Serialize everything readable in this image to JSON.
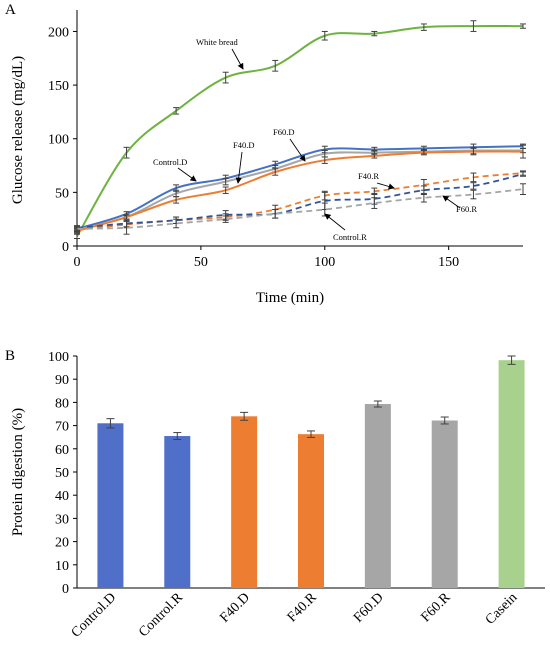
{
  "chart_data": [
    {
      "panel_label": "A",
      "type": "line",
      "xlabel": "Time (min)",
      "ylabel": "Glucose release (mg/dL)",
      "xlim": [
        0,
        180
      ],
      "ylim": [
        0,
        220
      ],
      "xticks": [
        0,
        50,
        100,
        150
      ],
      "yticks": [
        0,
        50,
        100,
        150,
        200
      ],
      "grid": false,
      "series": [
        {
          "name": "White bread",
          "color": "#6db33f",
          "dash": "solid",
          "x": [
            0,
            20,
            40,
            60,
            80,
            100,
            120,
            140,
            160,
            180
          ],
          "y": [
            9,
            87,
            126,
            157,
            168,
            196,
            198,
            204,
            205,
            205
          ],
          "err": [
            2,
            5,
            3,
            5,
            5,
            4,
            2,
            3,
            5,
            2
          ]
        },
        {
          "name": "Control.D",
          "color": "#4472c4",
          "dash": "solid",
          "x": [
            0,
            20,
            40,
            60,
            80,
            100,
            120,
            140,
            160,
            180
          ],
          "y": [
            16,
            30,
            54,
            63,
            76,
            90,
            90,
            91,
            92,
            93
          ],
          "err": [
            2,
            2,
            3,
            3,
            3,
            3,
            2,
            2,
            3,
            2
          ]
        },
        {
          "name": "F60.D",
          "color": "#a6a6a6",
          "dash": "solid",
          "x": [
            0,
            20,
            40,
            60,
            80,
            100,
            120,
            140,
            160,
            180
          ],
          "y": [
            15,
            27,
            49,
            60,
            72,
            86,
            87,
            88,
            89,
            89
          ],
          "err": [
            2,
            2,
            3,
            3,
            3,
            3,
            2,
            2,
            3,
            2
          ]
        },
        {
          "name": "F40.D",
          "color": "#ed7d31",
          "dash": "solid",
          "x": [
            0,
            20,
            40,
            60,
            80,
            100,
            120,
            140,
            160,
            180
          ],
          "y": [
            14,
            27,
            43,
            52,
            69,
            80,
            84,
            87,
            88,
            88
          ],
          "err": [
            2,
            2,
            3,
            3,
            3,
            3,
            2,
            2,
            3,
            6
          ]
        },
        {
          "name": "F40.R",
          "color": "#ed7d31",
          "dash": "dashed",
          "x": [
            0,
            20,
            40,
            60,
            80,
            100,
            120,
            140,
            160,
            180
          ],
          "y": [
            15,
            20,
            24,
            27,
            34,
            47,
            51,
            57,
            64,
            68
          ],
          "err": [
            2,
            3,
            3,
            3,
            4,
            4,
            3,
            5,
            4,
            2
          ]
        },
        {
          "name": "F60.R",
          "color": "#2e5597",
          "dash": "dashed",
          "x": [
            0,
            20,
            40,
            60,
            80,
            100,
            120,
            140,
            160,
            180
          ],
          "y": [
            17,
            21,
            24,
            29,
            30,
            42,
            44,
            52,
            56,
            67
          ],
          "err": [
            2,
            3,
            3,
            4,
            4,
            8,
            5,
            4,
            3,
            2
          ]
        },
        {
          "name": "Control.R",
          "color": "#a6a6a6",
          "dash": "dashed",
          "x": [
            0,
            20,
            40,
            60,
            80,
            100,
            120,
            140,
            160,
            180
          ],
          "y": [
            16,
            17,
            21,
            25,
            30,
            34,
            40,
            45,
            48,
            53
          ],
          "err": [
            2,
            6,
            4,
            3,
            4,
            6,
            5,
            4,
            4,
            5
          ]
        }
      ],
      "annotations": [
        {
          "text": "White bread",
          "target_series": "White bread"
        },
        {
          "text": "Control.D",
          "target_series": "Control.D"
        },
        {
          "text": "F40.D",
          "target_series": "F40.D"
        },
        {
          "text": "F60.D",
          "target_series": "F60.D"
        },
        {
          "text": "F40.R",
          "target_series": "F40.R"
        },
        {
          "text": "F60.R",
          "target_series": "F60.R"
        },
        {
          "text": "Control.R",
          "target_series": "Control.R"
        }
      ]
    },
    {
      "panel_label": "B",
      "type": "bar",
      "ylabel": "Protein digestion (%)",
      "ylim": [
        0,
        100
      ],
      "yticks": [
        0,
        10,
        20,
        30,
        40,
        50,
        60,
        70,
        80,
        90,
        100
      ],
      "grid": false,
      "categories": [
        "Control.D",
        "Control.R",
        "F40.D",
        "F40.R",
        "F60.D",
        "F60.R",
        "Casein"
      ],
      "values": [
        71,
        65.5,
        74,
        66.3,
        79.3,
        72.2,
        98.2
      ],
      "errors": [
        2.0,
        1.5,
        1.7,
        1.4,
        1.3,
        1.5,
        1.8
      ],
      "colors": [
        "#4f6fc8",
        "#4f6fc8",
        "#ed7d31",
        "#ed7d31",
        "#a6a6a6",
        "#a6a6a6",
        "#a9d18e"
      ]
    }
  ]
}
